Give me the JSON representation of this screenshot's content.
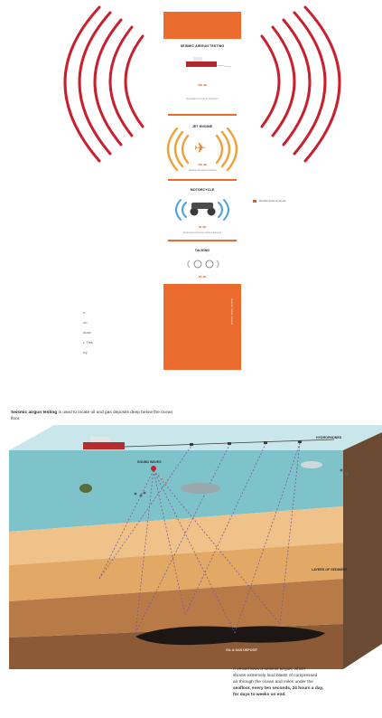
{
  "infographic": {
    "sections": [
      {
        "title": "SEISMIC AIRGUN TESTING",
        "db": "259 dB",
        "note": "Equivalent to a large explosion"
      },
      {
        "title": "JET ENGINE",
        "db": "150 dB",
        "note": "Hearing damage threshold"
      },
      {
        "title": "MOTORCYCLE",
        "db": "90 dB",
        "note": "Prolonged exposure causes damage"
      },
      {
        "title": "TALKING",
        "db": "60 dB",
        "note": ""
      }
    ],
    "legend_label": "Decibel level of sound",
    "side_fragment": [
      "n",
      "on",
      "ause",
      "r. This",
      "ng"
    ],
    "vertical_source": "Sources: NOAA, Oceana"
  },
  "diagram": {
    "intro_bold": "Seismic airgun testing",
    "intro_rest": " is used to locate oil and gas deposits deep below the ocean floor.",
    "labels": {
      "hydrophones": "HYDROPHONES",
      "sound_waves": "SOUND WAVES",
      "rock_layers": "LAYERS OF SEDIMENT",
      "oil_deposit": "OIL & GAS DEPOSIT"
    },
    "description_lines": [
      "A vessel tows a seismic airgun, which",
      "shoots extremely loud blasts of compressed",
      "air through the ocean and miles under the",
      "seafloor, every ten seconds, 24 hours a day,",
      "for days to weeks on end."
    ]
  },
  "colors": {
    "accent": "#ea6b2d",
    "wave": "#c8202e",
    "ocean": "#7cc1c8",
    "sand": "#e8b77c",
    "rock_dark": "#8c5a36",
    "oil": "#1c1714"
  }
}
